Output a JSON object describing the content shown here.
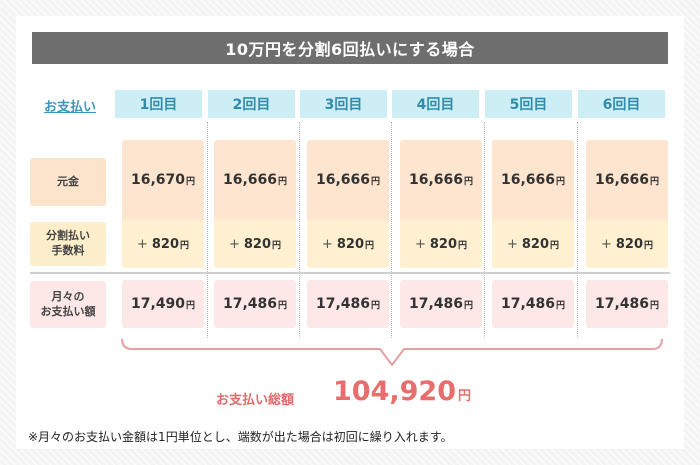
{
  "title": "10万円を分割6回払いにする場合",
  "payment_label": "お支払い",
  "columns": [
    "1回目",
    "2回目",
    "3回目",
    "4回目",
    "5回目",
    "6回目"
  ],
  "rows": {
    "principal": {
      "label": "元金",
      "values": [
        "16,670",
        "16,666",
        "16,666",
        "16,666",
        "16,666",
        "16,666"
      ]
    },
    "fee": {
      "label_line1": "分割払い",
      "label_line2": "手数料",
      "values": [
        "820",
        "820",
        "820",
        "820",
        "820",
        "820"
      ]
    },
    "monthly": {
      "label_line1": "月々の",
      "label_line2": "お支払い額",
      "values": [
        "17,490",
        "17,486",
        "17,486",
        "17,486",
        "17,486",
        "17,486"
      ]
    }
  },
  "plus_sign": "+",
  "yen_unit": "円",
  "total": {
    "label": "お支払い総額",
    "value": "104,920"
  },
  "note": "※月々のお支払い金額は1円単位とし、端数が出た場合は初回に繰り入れます。"
}
